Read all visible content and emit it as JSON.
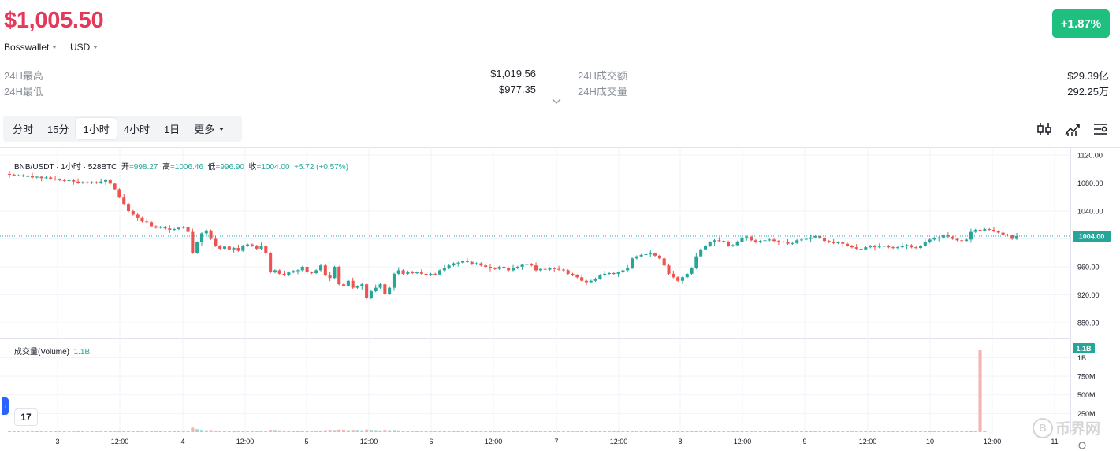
{
  "header": {
    "price": "$1,005.50",
    "change": "+1.87%",
    "exchange": "Bosswallet",
    "currency": "USD"
  },
  "stats": {
    "high_label": "24H最高",
    "high_value": "$1,019.56",
    "low_label": "24H最低",
    "low_value": "$977.35",
    "turnover_label": "24H成交额",
    "turnover_value": "$29.39亿",
    "volume_label": "24H成交量",
    "volume_value": "292.25万"
  },
  "timeframes": [
    "分时",
    "15分",
    "1小时",
    "4小时",
    "1日"
  ],
  "active_timeframe": "1小时",
  "more_label": "更多",
  "icons": [
    "candlestick-icon",
    "indicator-icon",
    "settings-icon"
  ],
  "legend": {
    "symbol": "BNB/USDT · 1小时 · 528BTC",
    "open_label": "开",
    "open": "=998.27",
    "high_label": "高",
    "high": "=1006.46",
    "low_label": "低",
    "low": "=996.90",
    "close_label": "收",
    "close": "=1004.00",
    "change": "+5.72 (+0.57%)"
  },
  "volume_legend": {
    "label": "成交量(Volume)",
    "value": "1.1B"
  },
  "tv_logo": "17",
  "watermark": {
    "coin": "B",
    "text": "币界网"
  },
  "colors": {
    "up": "#26a69a",
    "down": "#ef5350",
    "vol_up": "#9fd7cf",
    "vol_down": "#f5b3b1",
    "price_red": "#e4395a",
    "badge_green": "#1fbf80"
  },
  "chart_data": {
    "type": "candlestick",
    "x_tick_labels": [
      "3",
      "12:00",
      "4",
      "12:00",
      "5",
      "12:00",
      "6",
      "12:00",
      "7",
      "12:00",
      "8",
      "12:00",
      "9",
      "12:00",
      "10",
      "12:00",
      "11"
    ],
    "y_tick_labels": [
      "1120.00",
      "1080.00",
      "1040.00",
      "1000.00",
      "960.00",
      "920.00",
      "880.00"
    ],
    "ylim": [
      870,
      1125
    ],
    "last_price": 1004.0,
    "last_price_label": "1004.00",
    "volume_tick_labels": [
      "1B",
      "750M",
      "500M",
      "250M"
    ],
    "volume_last_label": "1.1B",
    "volume_ylim": [
      0,
      1100000000
    ],
    "closes": [
      1092,
      1091,
      1091,
      1090,
      1090,
      1088,
      1089,
      1087,
      1088,
      1086,
      1085,
      1084,
      1083,
      1084,
      1082,
      1080,
      1081,
      1080,
      1081,
      1080,
      1082,
      1084,
      1079,
      1071,
      1060,
      1050,
      1040,
      1035,
      1030,
      1025,
      1024,
      1018,
      1016,
      1017,
      1015,
      1013,
      1014,
      1016,
      1017,
      1010,
      980,
      995,
      1008,
      1012,
      1000,
      990,
      986,
      989,
      985,
      987,
      983,
      990,
      992,
      990,
      986,
      990,
      980,
      952,
      955,
      950,
      948,
      952,
      954,
      955,
      960,
      952,
      951,
      955,
      962,
      948,
      944,
      960,
      935,
      933,
      940,
      930,
      932,
      935,
      915,
      925,
      930,
      935,
      921,
      930,
      950,
      955,
      950,
      953,
      951,
      952,
      950,
      948,
      950,
      949,
      955,
      958,
      962,
      965,
      966,
      968,
      967,
      964,
      965,
      962,
      960,
      958,
      957,
      960,
      958,
      955,
      958,
      960,
      963,
      964,
      962,
      955,
      957,
      956,
      958,
      957,
      956,
      955,
      950,
      948,
      945,
      940,
      938,
      940,
      943,
      948,
      950,
      951,
      950,
      952,
      955,
      958,
      972,
      975,
      977,
      978,
      979,
      976,
      972,
      962,
      950,
      945,
      940,
      945,
      950,
      958,
      975,
      985,
      990,
      995,
      998,
      997,
      996,
      990,
      991,
      996,
      1002,
      1003,
      998,
      995,
      997,
      998,
      999,
      997,
      996,
      995,
      993,
      994,
      998,
      999,
      1000,
      1002,
      1004,
      1001,
      997,
      995,
      994,
      995,
      993,
      990,
      988,
      986,
      985,
      988,
      990,
      988,
      989,
      990,
      988,
      987,
      988,
      990,
      991,
      988,
      987,
      990,
      995,
      999,
      1001,
      1002,
      1005,
      1003,
      1000,
      998,
      997,
      999,
      1010,
      1013,
      1012,
      1014,
      1013,
      1011,
      1009,
      1006,
      1005,
      1000,
      1004
    ],
    "volumes": [
      12,
      10,
      11,
      9,
      10,
      12,
      11,
      10,
      9,
      10,
      12,
      11,
      10,
      9,
      10,
      11,
      10,
      9,
      10,
      11,
      10,
      12,
      14,
      18,
      22,
      20,
      18,
      16,
      15,
      14,
      13,
      15,
      14,
      12,
      11,
      12,
      13,
      11,
      10,
      14,
      60,
      40,
      30,
      25,
      28,
      22,
      18,
      20,
      16,
      15,
      14,
      16,
      15,
      13,
      14,
      16,
      20,
      30,
      28,
      24,
      22,
      20,
      18,
      20,
      22,
      19,
      18,
      20,
      22,
      26,
      30,
      28,
      35,
      32,
      26,
      30,
      28,
      25,
      34,
      30,
      26,
      24,
      30,
      26,
      28,
      24,
      20,
      18,
      17,
      16,
      15,
      14,
      13,
      14,
      15,
      16,
      17,
      16,
      15,
      14,
      13,
      14,
      13,
      12,
      13,
      12,
      11,
      12,
      13,
      12,
      11,
      12,
      13,
      12,
      11,
      12,
      14,
      12,
      11,
      12,
      11,
      10,
      11,
      12,
      13,
      14,
      15,
      14,
      13,
      12,
      13,
      12,
      11,
      12,
      13,
      12,
      14,
      15,
      16,
      15,
      14,
      13,
      14,
      15,
      16,
      18,
      20,
      18,
      16,
      15,
      16,
      18,
      20,
      22,
      21,
      19,
      17,
      16,
      15,
      14,
      15,
      16,
      15,
      14,
      13,
      14,
      13,
      12,
      13,
      12,
      11,
      12,
      13,
      12,
      11,
      12,
      11,
      10,
      11,
      12,
      11,
      10,
      11,
      12,
      11,
      10,
      11,
      12,
      13,
      12,
      11,
      12,
      13,
      14,
      13,
      12,
      13,
      12,
      13,
      14,
      15,
      14,
      13,
      12,
      14,
      16,
      15,
      14,
      13,
      12,
      11,
      12,
      1100,
      14
    ]
  }
}
